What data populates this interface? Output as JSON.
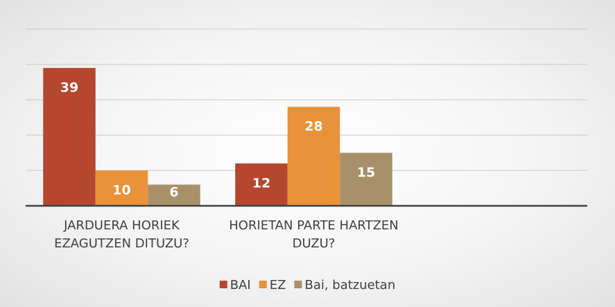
{
  "chart_data": {
    "type": "bar",
    "categories": [
      "JARDUERA HORIEK EZAGUTZEN DITUZU?",
      "HORIETAN PARTE HARTZEN DUZU?",
      null
    ],
    "series": [
      {
        "name": "BAI",
        "color": "#b5472f",
        "values": [
          39,
          12,
          null
        ]
      },
      {
        "name": "EZ",
        "color": "#e8923a",
        "values": [
          10,
          28,
          null
        ]
      },
      {
        "name": "Bai, batzuetan",
        "color": "#a8916a",
        "values": [
          6,
          15,
          null
        ]
      }
    ],
    "ylim": [
      0,
      50
    ],
    "yticks": [
      0,
      10,
      20,
      30,
      40,
      50
    ],
    "grid": true,
    "legend": "bottom"
  }
}
